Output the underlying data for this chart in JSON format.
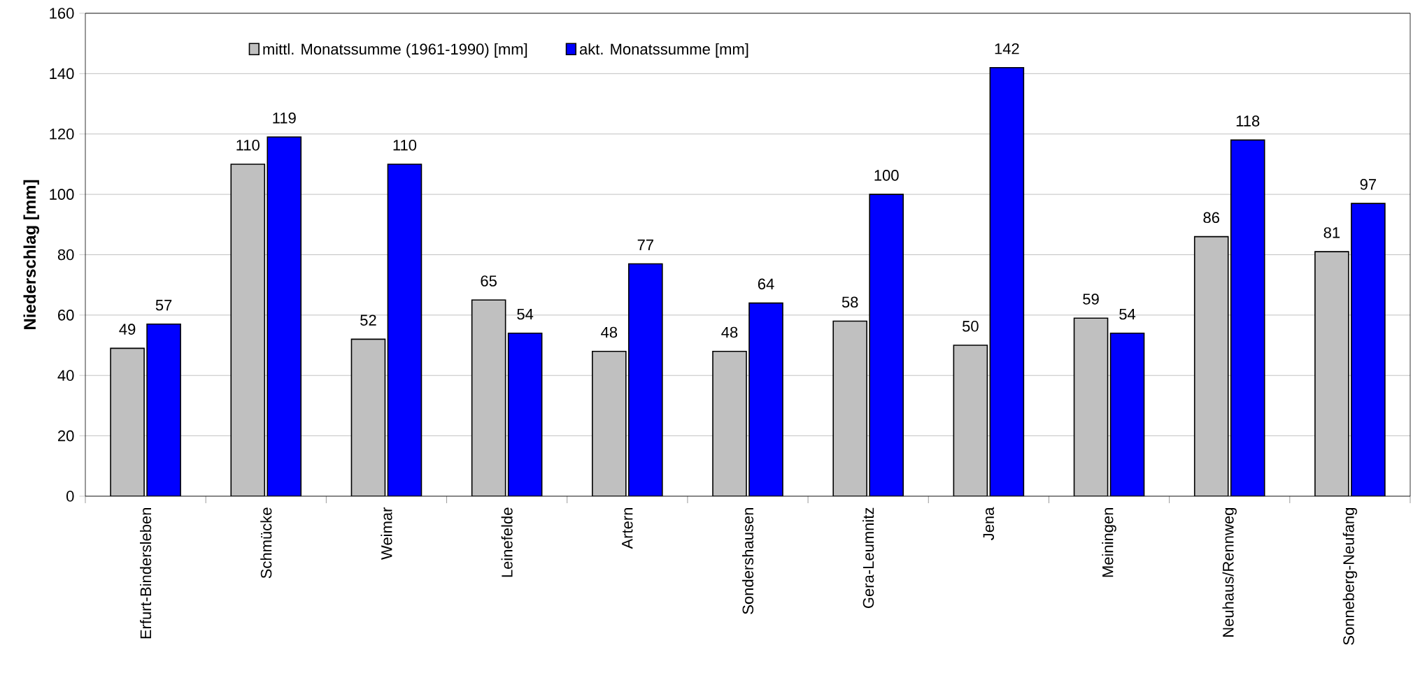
{
  "chart_data": {
    "type": "bar",
    "ylabel": "**Niederschlag [mm]**",
    "categories": [
      "Erfurt-Bindersleben",
      "Schmücke",
      "Weimar",
      "Leinefelde",
      "Artern",
      "Sondershausen",
      "Gera-Leumnitz",
      "Jena",
      "Meiningen",
      "Neuhaus/Rennweg",
      "Sonneberg-Neufang"
    ],
    "series": [
      {
        "name": "mittl. Monatssumme (1961-1990) [mm]",
        "color": "#c0c0c0",
        "values": [
          49,
          110,
          52,
          65,
          48,
          48,
          58,
          50,
          59,
          86,
          81
        ]
      },
      {
        "name": "akt. Monatssumme [mm]",
        "color": "#0000ff",
        "values": [
          57,
          119,
          110,
          54,
          77,
          64,
          100,
          142,
          54,
          118,
          97
        ]
      }
    ],
    "ylim": [
      0,
      160
    ],
    "yticks": [
      0,
      20,
      40,
      60,
      80,
      100,
      120,
      140,
      160
    ],
    "grid": "y",
    "legend": "top left",
    "data_labels": true
  }
}
